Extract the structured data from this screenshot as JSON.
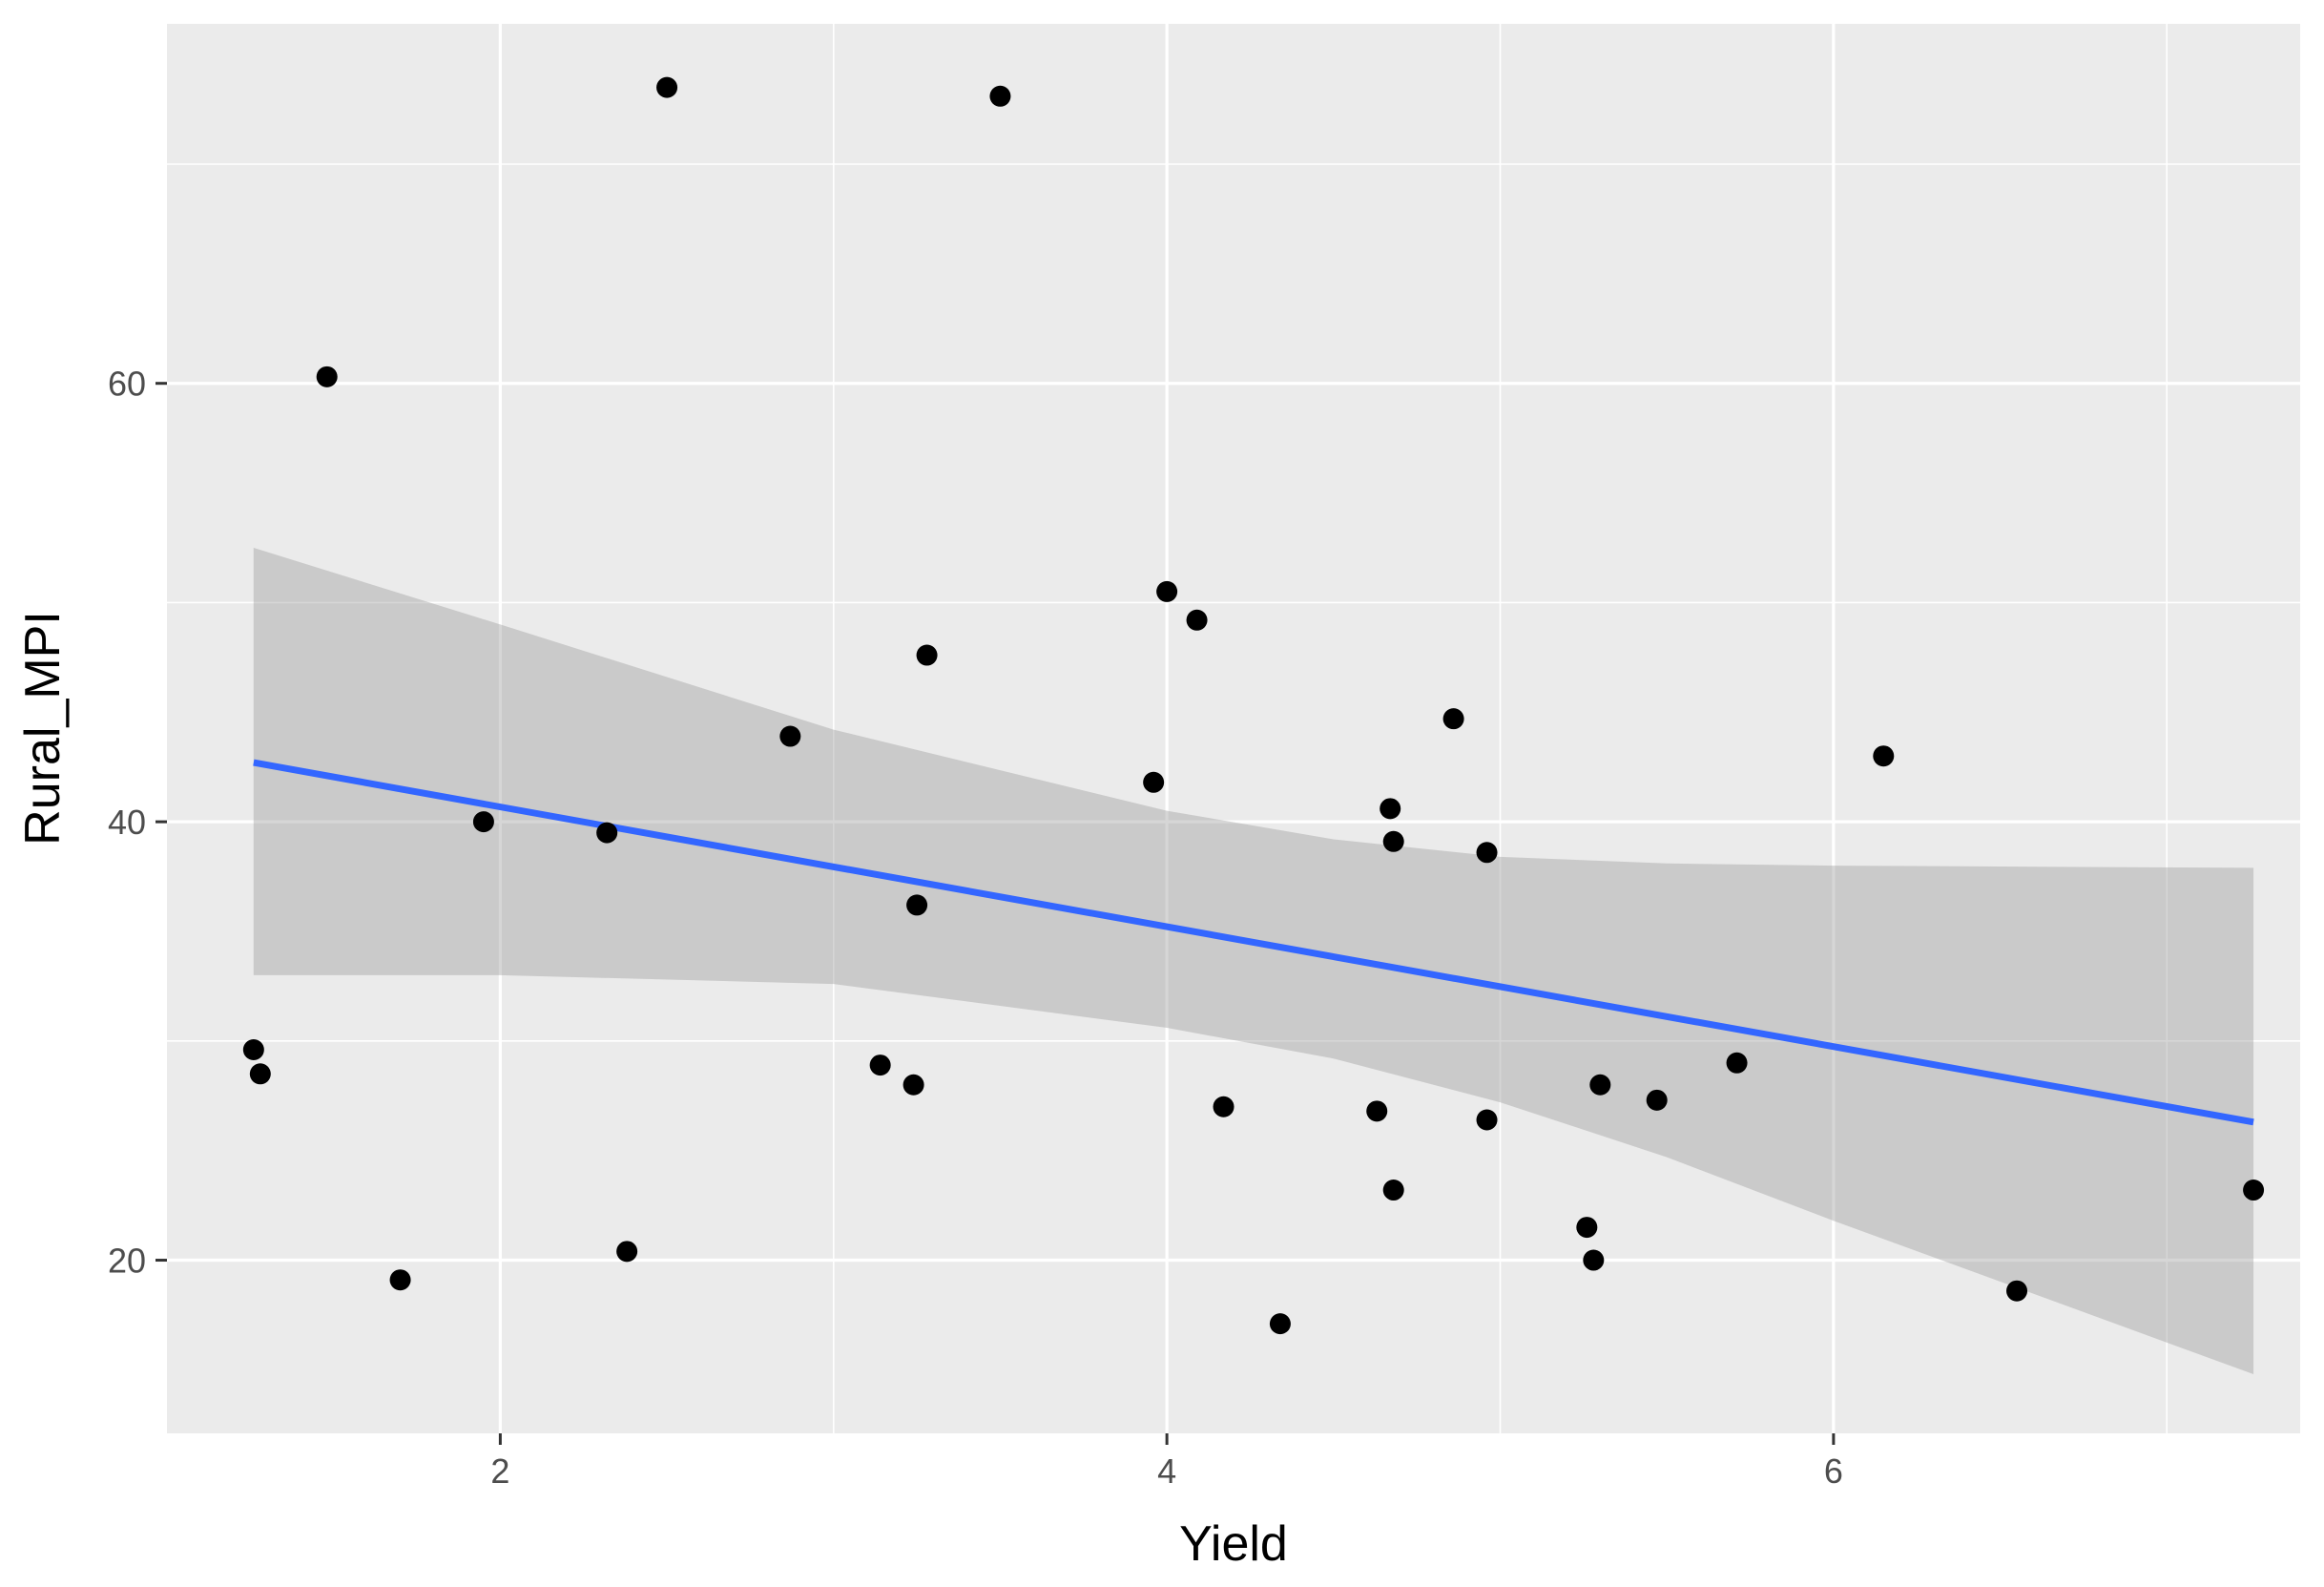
{
  "chart_data": {
    "type": "scatter",
    "xlabel": "Yield",
    "ylabel": "Rural_MPI",
    "xlim": [
      1.0,
      7.4
    ],
    "ylim": [
      12.1,
      76.4
    ],
    "x_ticks": [
      2,
      4,
      6
    ],
    "x_minor": [
      3,
      5,
      7
    ],
    "y_ticks": [
      20,
      40,
      60
    ],
    "y_minor": [
      30,
      50,
      70
    ],
    "grid": true,
    "points": [
      {
        "x": 1.26,
        "y": 29.6
      },
      {
        "x": 1.28,
        "y": 28.5
      },
      {
        "x": 1.48,
        "y": 60.3
      },
      {
        "x": 1.7,
        "y": 19.1
      },
      {
        "x": 1.95,
        "y": 40.0
      },
      {
        "x": 2.32,
        "y": 39.5
      },
      {
        "x": 2.38,
        "y": 20.4
      },
      {
        "x": 2.5,
        "y": 73.5
      },
      {
        "x": 2.87,
        "y": 43.9
      },
      {
        "x": 3.14,
        "y": 28.9
      },
      {
        "x": 3.24,
        "y": 28.0
      },
      {
        "x": 3.25,
        "y": 36.2
      },
      {
        "x": 3.28,
        "y": 47.6
      },
      {
        "x": 3.5,
        "y": 73.1
      },
      {
        "x": 3.96,
        "y": 41.8
      },
      {
        "x": 4.0,
        "y": 50.5
      },
      {
        "x": 4.09,
        "y": 49.2
      },
      {
        "x": 4.17,
        "y": 27.0
      },
      {
        "x": 4.34,
        "y": 17.1
      },
      {
        "x": 4.63,
        "y": 26.8
      },
      {
        "x": 4.67,
        "y": 40.6
      },
      {
        "x": 4.68,
        "y": 39.1
      },
      {
        "x": 4.68,
        "y": 23.2
      },
      {
        "x": 4.86,
        "y": 44.7
      },
      {
        "x": 4.96,
        "y": 38.6
      },
      {
        "x": 4.96,
        "y": 26.4
      },
      {
        "x": 5.26,
        "y": 21.5
      },
      {
        "x": 5.28,
        "y": 20.0
      },
      {
        "x": 5.3,
        "y": 28.0
      },
      {
        "x": 5.47,
        "y": 27.3
      },
      {
        "x": 5.71,
        "y": 29.0
      },
      {
        "x": 6.15,
        "y": 43.0
      },
      {
        "x": 6.55,
        "y": 18.6
      },
      {
        "x": 7.26,
        "y": 23.2
      }
    ],
    "fit_line": {
      "x": [
        1.26,
        7.26
      ],
      "y": [
        42.7,
        26.3
      ],
      "color": "#3366FF"
    },
    "confidence_band": {
      "x": [
        1.26,
        2.0,
        3.0,
        4.0,
        4.5,
        5.0,
        5.5,
        6.0,
        7.26
      ],
      "upper": [
        52.5,
        49.0,
        44.2,
        40.5,
        39.2,
        38.4,
        38.1,
        38.0,
        37.9
      ],
      "lower": [
        33.0,
        33.0,
        32.6,
        30.6,
        29.2,
        27.2,
        24.7,
        21.8,
        14.8
      ],
      "color": "#999999"
    },
    "colors": {
      "panel_background": "#EBEBEB",
      "grid": "#FFFFFF",
      "point": "#000000",
      "tick": "#333333"
    }
  }
}
